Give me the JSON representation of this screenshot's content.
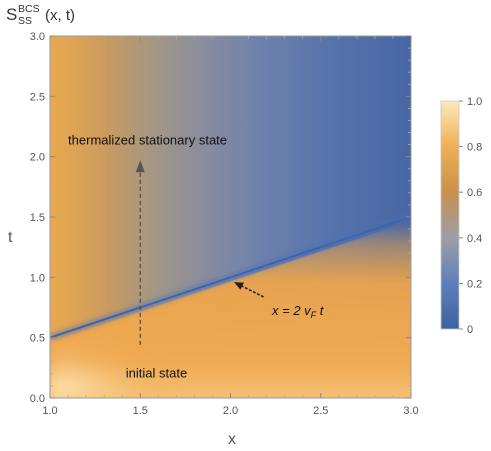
{
  "chart_data": {
    "type": "heatmap",
    "title": {
      "base": "S",
      "sup": "BCS",
      "sub": "SS",
      "args": "(x, t)"
    },
    "xlabel": "x",
    "ylabel": "t",
    "xlim": [
      1.0,
      3.0
    ],
    "ylim": [
      0.0,
      3.0
    ],
    "x_ticks": [
      "1.0",
      "1.5",
      "2.0",
      "2.5",
      "3.0"
    ],
    "y_ticks": [
      "0.0",
      "0.5",
      "1.0",
      "1.5",
      "2.0",
      "2.5",
      "3.0"
    ],
    "colorbar": {
      "range": [
        0,
        1
      ],
      "ticks": [
        "0",
        "0.2",
        "0.4",
        "0.6",
        "0.8",
        "1.0"
      ],
      "colors": [
        "#3c62a0",
        "#5f7fb8",
        "#9b9ea8",
        "#c9914a",
        "#eeb057",
        "#fce9b8"
      ]
    },
    "features": {
      "light_cone_line": {
        "equation_label": "x = 2 v_F t",
        "x": [
          1.0,
          3.0
        ],
        "t": [
          0.5,
          1.5
        ]
      },
      "annotations": [
        {
          "text": "thermalized stationary state",
          "x": 1.1,
          "t": 2.1
        },
        {
          "text": "initial state",
          "x": 1.42,
          "t": 0.17
        }
      ],
      "dashed_arrow": {
        "x": 1.5,
        "t_from": 0.44,
        "t_to": 1.97
      },
      "dotted_arrow": {
        "x_from": 2.18,
        "t_from": 0.84,
        "x_to": 2.02,
        "t_to": 0.96
      }
    }
  }
}
